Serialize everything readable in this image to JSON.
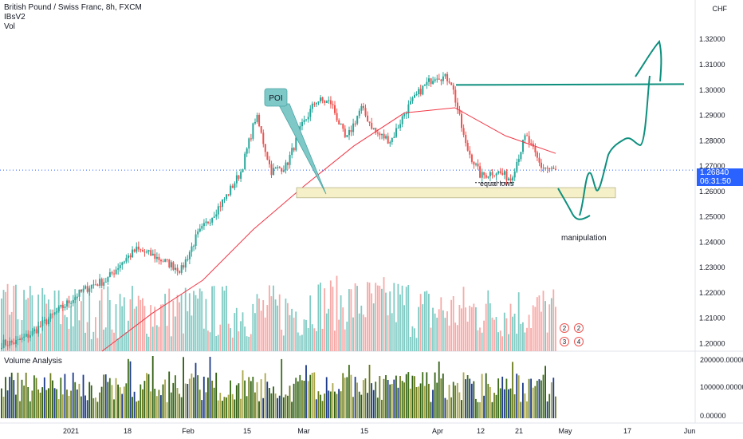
{
  "header": {
    "symbol_line": "British Pound / Swiss Franc, 8h, FXCM",
    "indicator1": "IBsV2",
    "indicator2": "Vol",
    "currency": "CHF"
  },
  "price_tag": {
    "price": "1.26840",
    "countdown": "06:31:50",
    "color": "#2962ff"
  },
  "volume_pane": {
    "title": "Volume Analysis"
  },
  "annotations": {
    "poi_label": "POI",
    "equal_lows": "equal lows",
    "manipulation": "manipulation"
  },
  "markers": [
    "2",
    "2",
    "3",
    "4"
  ],
  "colors": {
    "up": "#26a69a",
    "down": "#ef5350",
    "ma": "#f23645",
    "arrow": "#0e8f7e",
    "zone": "#f5f0c8",
    "callout": "#7fc8c8"
  },
  "chart_data": {
    "type": "candlestick",
    "timeframe": "8h",
    "x_tick_labels": [
      "2021",
      "18",
      "Feb",
      "15",
      "Mar",
      "15",
      "Apr",
      "12",
      "21",
      "May",
      "17",
      "Jun"
    ],
    "y_tick_labels": [
      "1.32000",
      "1.31000",
      "1.30000",
      "1.29000",
      "1.28000",
      "1.27000",
      "1.26000",
      "1.25000",
      "1.24000",
      "1.23000",
      "1.22000",
      "1.21000",
      "1.20000"
    ],
    "ylim": [
      1.197,
      1.3355
    ],
    "volume_axis_labels": [
      "200000.00000",
      "100000.00000",
      "0.00000"
    ],
    "last_price": 1.2684,
    "trend_points": [
      [
        1.2,
        1.2005,
        1.204,
        1.209,
        1.214,
        1.219,
        1.223,
        1.225
      ],
      [
        1.232,
        1.237,
        1.235,
        1.232,
        1.229,
        1.242,
        1.25,
        1.258,
        1.268,
        1.29
      ],
      [
        1.268,
        1.27,
        1.285,
        1.296,
        1.295,
        1.28,
        1.293,
        1.283,
        1.28,
        1.292
      ],
      [
        1.3,
        1.306,
        1.304,
        1.278,
        1.266,
        1.268,
        1.265,
        1.282,
        1.27,
        1.268
      ]
    ],
    "ma_points": [
      1.197,
      1.212,
      1.225,
      1.245,
      1.262,
      1.278,
      1.291,
      1.293,
      1.282,
      1.275
    ],
    "zone": {
      "low": 1.2575,
      "high": 1.2615
    },
    "resistance_level": 1.302
  }
}
